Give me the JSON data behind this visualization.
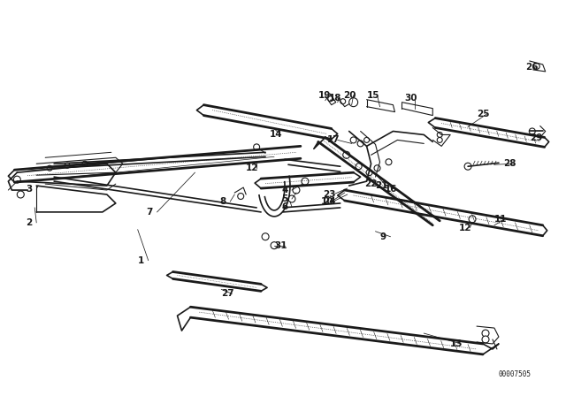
{
  "bg_color": "#ffffff",
  "line_color": "#1a1a1a",
  "fig_width": 6.4,
  "fig_height": 4.48,
  "dpi": 100,
  "watermark": "00007505"
}
